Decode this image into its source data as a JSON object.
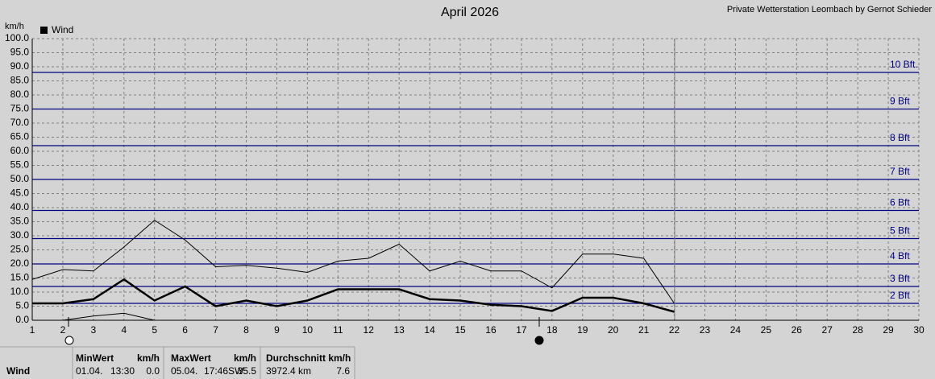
{
  "chart_data": {
    "type": "line",
    "title": "April 2026",
    "subtitle": "Private Wetterstation Leombach by Gernot Schieder",
    "y_label": "km/h",
    "legend": "Wind",
    "x": [
      1,
      2,
      3,
      4,
      5,
      6,
      7,
      8,
      9,
      10,
      11,
      12,
      13,
      14,
      15,
      16,
      17,
      18,
      19,
      20,
      21,
      22
    ],
    "series": [
      {
        "name": "Wind",
        "color": "#000000",
        "values": [
          6,
          6,
          7.5,
          14.5,
          7,
          12,
          5,
          7,
          5,
          7,
          11,
          11,
          11,
          7.5,
          7,
          5.5,
          5,
          3.3,
          8,
          8,
          6,
          3
        ]
      },
      {
        "color": "#000000",
        "values": [
          14.5,
          18,
          17.5,
          26,
          35.5,
          28.5,
          19,
          19.5,
          18.5,
          17,
          21,
          22,
          27,
          17.5,
          21,
          17.5,
          17.5,
          11.5,
          23.5,
          23.5,
          22,
          6
        ]
      },
      {
        "color": "#000000",
        "values": [
          0,
          0,
          1.5,
          2.5,
          0,
          0,
          0,
          0,
          0,
          0,
          0,
          0,
          0,
          0,
          0,
          0,
          0,
          0,
          0,
          0,
          0,
          0
        ]
      }
    ],
    "xlim": [
      1,
      30
    ],
    "xticks": [
      1,
      2,
      3,
      4,
      5,
      6,
      7,
      8,
      9,
      10,
      11,
      12,
      13,
      14,
      15,
      16,
      17,
      18,
      19,
      20,
      21,
      22,
      23,
      24,
      25,
      26,
      27,
      28,
      29,
      30
    ],
    "ylim": [
      0,
      100
    ],
    "yticks": [
      {
        "value": 0,
        "label": "0.0"
      },
      {
        "value": 5,
        "label": "5.0"
      },
      {
        "value": 10,
        "label": "10.0"
      },
      {
        "value": 15,
        "label": "15.0"
      },
      {
        "value": 20,
        "label": "20.0"
      },
      {
        "value": 25,
        "label": "25.0"
      },
      {
        "value": 30,
        "label": "30.0"
      },
      {
        "value": 35,
        "label": "35.0"
      },
      {
        "value": 40,
        "label": "40.0"
      },
      {
        "value": 45,
        "label": "45.0"
      },
      {
        "value": 50,
        "label": "50.0"
      },
      {
        "value": 55,
        "label": "55.0"
      },
      {
        "value": 60,
        "label": "60.0"
      },
      {
        "value": 65,
        "label": "65.0"
      },
      {
        "value": 70,
        "label": "70.0"
      },
      {
        "value": 75,
        "label": "75.0"
      },
      {
        "value": 80,
        "label": "80.0"
      },
      {
        "value": 85,
        "label": "85.0"
      },
      {
        "value": 90,
        "label": "90.0"
      },
      {
        "value": 95,
        "label": "95.0"
      },
      {
        "value": 100,
        "label": "100.0"
      }
    ],
    "grid": true,
    "beaufort_color": "#000080",
    "beaufort_lines": [
      {
        "value": 6,
        "label": "2 Bft"
      },
      {
        "value": 12,
        "label": "3 Bft"
      },
      {
        "value": 20,
        "label": "4 Bft"
      },
      {
        "value": 29,
        "label": "5 Bft"
      },
      {
        "value": 39,
        "label": "6 Bft"
      },
      {
        "value": 50,
        "label": "7 Bft"
      },
      {
        "value": 62,
        "label": "8 Bft"
      },
      {
        "value": 75,
        "label": "9 Bft"
      },
      {
        "value": 88,
        "label": "10 Bft."
      }
    ]
  },
  "stats": {
    "row_label": "Wind",
    "min": {
      "header": "MinWert",
      "unit": "km/h",
      "date": "01.04.",
      "time": "13:30",
      "value": "0.0"
    },
    "max": {
      "header": "MaxWert",
      "unit": "km/h",
      "date": "05.04.",
      "time": "17:46",
      "dir": "SW",
      "value": "35.5"
    },
    "avg": {
      "header": "Durchschnitt km/h",
      "distance": "3972.4 km",
      "value": "7.6"
    }
  }
}
